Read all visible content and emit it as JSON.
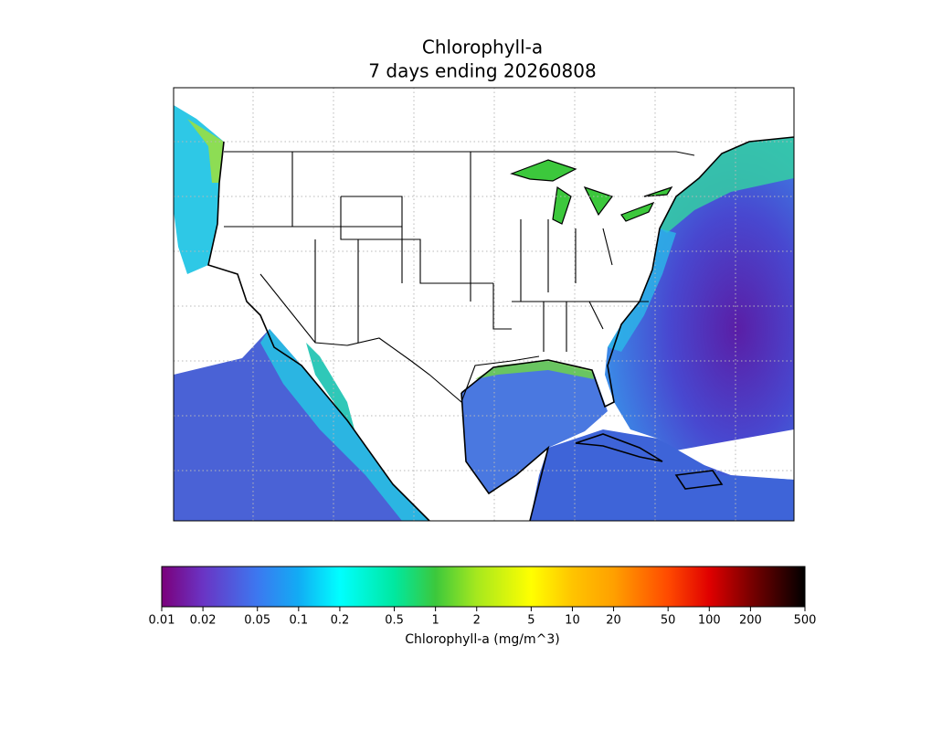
{
  "chart_data": {
    "type": "colorbar",
    "title": "Chlorophyll-a",
    "subtitle": "7 days ending 20260808",
    "xlabel": "Chlorophyll-a (mg/m^3)",
    "xscale": "log",
    "xlim": [
      0.01,
      500
    ],
    "xticks": [
      0.01,
      0.02,
      0.05,
      0.1,
      0.2,
      0.5,
      1,
      2,
      5,
      10,
      20,
      50,
      100,
      200,
      500
    ],
    "colors": [
      "#7b007b",
      "#6a34c4",
      "#3c78f0",
      "#12acf4",
      "#00ffff",
      "#00e8a0",
      "#3cc83c",
      "#a6e81e",
      "#ffff00",
      "#ffc400",
      "#ffa000",
      "#ff4a00",
      "#e00000",
      "#7a0000",
      "#000000"
    ]
  }
}
